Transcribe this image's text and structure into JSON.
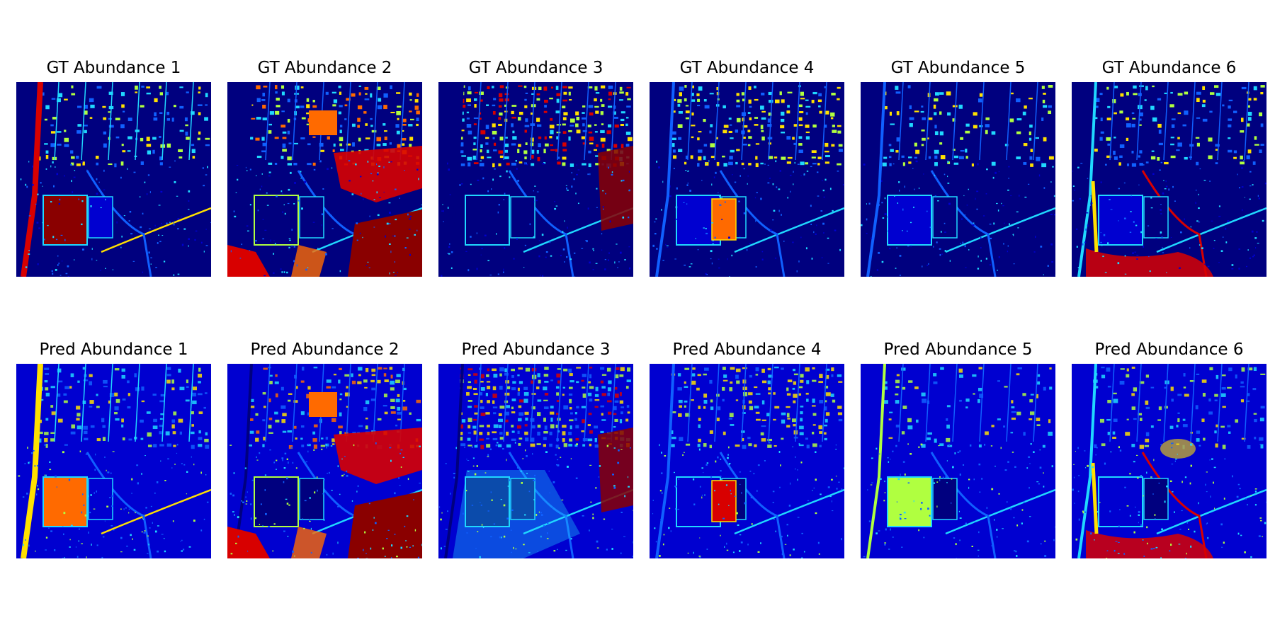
{
  "figure": {
    "rows": [
      {
        "name": "gt-row",
        "panels": [
          {
            "title": "GT Abundance 1",
            "theme": "road"
          },
          {
            "title": "GT Abundance 2",
            "theme": "vegetation"
          },
          {
            "title": "GT Abundance 3",
            "theme": "residential"
          },
          {
            "title": "GT Abundance 4",
            "theme": "roof"
          },
          {
            "title": "GT Abundance 5",
            "theme": "sparse"
          },
          {
            "title": "GT Abundance 6",
            "theme": "soil"
          }
        ]
      },
      {
        "name": "pred-row",
        "panels": [
          {
            "title": "Pred Abundance 1",
            "theme": "road"
          },
          {
            "title": "Pred Abundance 2",
            "theme": "vegetation"
          },
          {
            "title": "Pred Abundance 3",
            "theme": "residential"
          },
          {
            "title": "Pred Abundance 4",
            "theme": "roof"
          },
          {
            "title": "Pred Abundance 5",
            "theme": "sparse"
          },
          {
            "title": "Pred Abundance 6",
            "theme": "soil"
          }
        ]
      }
    ],
    "colormap": "jet",
    "colors": {
      "background_low": "#00007f",
      "low": "#0000d0",
      "mid_blue": "#1060ff",
      "cyan": "#20d8ff",
      "green_yellow": "#b0ff40",
      "yellow": "#ffe000",
      "orange": "#ff6a00",
      "red": "#d80000",
      "dark_red": "#8a0000"
    }
  }
}
